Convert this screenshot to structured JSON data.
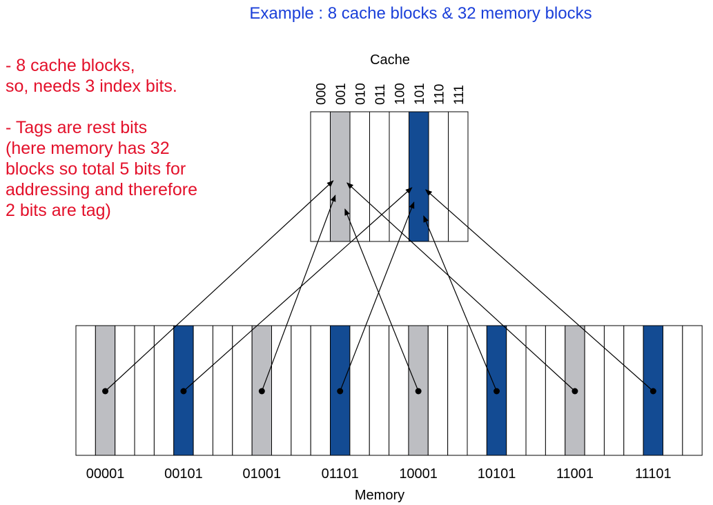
{
  "title": "Example : 8 cache blocks & 32 memory blocks",
  "notes": {
    "line1": "- 8 cache blocks,",
    "line2": "so, needs 3 index bits.",
    "line3": "- Tags are rest bits",
    "line4": "(here memory has 32",
    "line5": "blocks so total 5 bits for",
    "line6": "addressing and therefore",
    "line7": "2 bits are tag)"
  },
  "cache": {
    "label": "Cache",
    "indices": [
      "000",
      "001",
      "010",
      "011",
      "100",
      "101",
      "110",
      "111"
    ],
    "highlight_gray_index": 1,
    "highlight_blue_index": 5
  },
  "memory": {
    "label": "Memory",
    "total_blocks": 32,
    "addresses": [
      "00001",
      "00101",
      "01001",
      "01101",
      "10001",
      "10101",
      "11001",
      "11101"
    ],
    "mapped_blocks": [
      1,
      5,
      9,
      13,
      17,
      21,
      25,
      29
    ]
  },
  "colors": {
    "gray": "#bdbec2",
    "blue": "#134b93",
    "title": "#1a3fd9",
    "notes": "#e3102a"
  }
}
